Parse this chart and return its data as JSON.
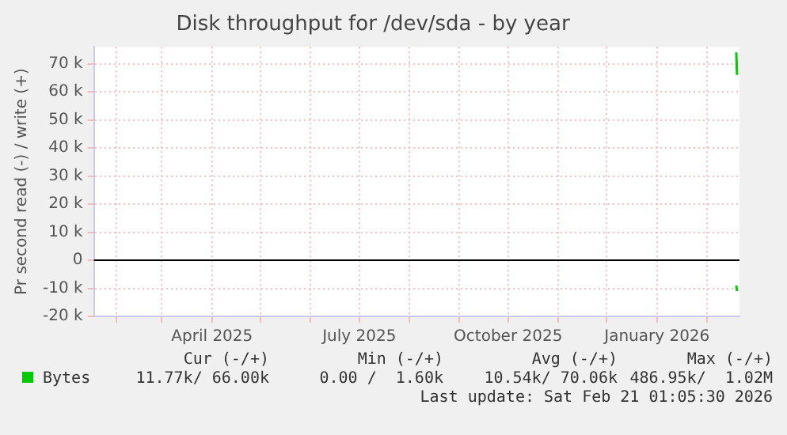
{
  "chart_data": {
    "type": "line",
    "title": "Disk throughput for /dev/sda - by year",
    "ylabel": "Pr second read (-) / write (+)",
    "x": [
      "2026-02-19T00:00",
      "2026-02-19T12:00"
    ],
    "xlim": [
      "2025-01-18",
      "2026-02-21"
    ],
    "xticks": [
      {
        "value": "2025-02-01",
        "label": null
      },
      {
        "value": "2025-03-01",
        "label": null
      },
      {
        "value": "2025-04-01",
        "label": "April 2025"
      },
      {
        "value": "2025-05-01",
        "label": null
      },
      {
        "value": "2025-06-01",
        "label": null
      },
      {
        "value": "2025-07-01",
        "label": "July 2025"
      },
      {
        "value": "2025-08-01",
        "label": null
      },
      {
        "value": "2025-09-01",
        "label": null
      },
      {
        "value": "2025-10-01",
        "label": "October 2025"
      },
      {
        "value": "2025-11-01",
        "label": null
      },
      {
        "value": "2025-12-01",
        "label": null
      },
      {
        "value": "2026-01-01",
        "label": "January 2026"
      },
      {
        "value": "2026-02-01",
        "label": null
      }
    ],
    "ylim": [
      -20000,
      76000
    ],
    "yticks": [
      {
        "value": -20000,
        "label": "-20 k"
      },
      {
        "value": -10000,
        "label": "-10 k"
      },
      0,
      {
        "value": 10000,
        "label": "10 k"
      },
      {
        "value": 20000,
        "label": "20 k"
      },
      {
        "value": 30000,
        "label": "30 k"
      },
      {
        "value": 40000,
        "label": "40 k"
      },
      {
        "value": 50000,
        "label": "50 k"
      },
      {
        "value": 60000,
        "label": "60 k"
      },
      {
        "value": 70000,
        "label": "70 k"
      }
    ],
    "series": [
      {
        "name": "Bytes",
        "color": "#00cc00",
        "values": [
          74000,
          66000
        ]
      },
      {
        "color": "#00cc00",
        "values": [
          -9000,
          -11000
        ]
      }
    ],
    "ref_lines": [
      {
        "axis": "y",
        "value": 0,
        "color": "#000000"
      }
    ],
    "grid": true,
    "legend": "bottom",
    "marker": "none",
    "line_style": "solid",
    "annotations": [
      "Cur (-/+)",
      "Min (-/+)",
      "Avg (-/+)",
      "Max (-/+)",
      "11.77k/ 66.00k",
      "0.00 /  1.60k",
      "10.54k/ 70.06k",
      "486.95k/  1.02M",
      "Last update: Sat Feb 21 01:05:30 2026"
    ]
  }
}
